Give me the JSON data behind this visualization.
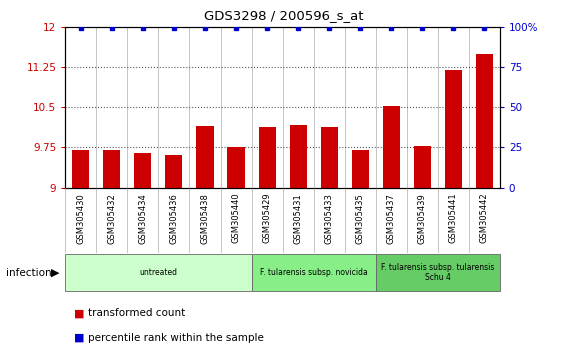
{
  "title": "GDS3298 / 200596_s_at",
  "samples": [
    "GSM305430",
    "GSM305432",
    "GSM305434",
    "GSM305436",
    "GSM305438",
    "GSM305440",
    "GSM305429",
    "GSM305431",
    "GSM305433",
    "GSM305435",
    "GSM305437",
    "GSM305439",
    "GSM305441",
    "GSM305442"
  ],
  "transformed_counts": [
    9.7,
    9.7,
    9.65,
    9.6,
    10.15,
    9.75,
    10.13,
    10.17,
    10.13,
    9.7,
    10.52,
    9.78,
    11.2,
    11.48
  ],
  "percentile_ranks": [
    99,
    99,
    99,
    99,
    99,
    99,
    99,
    99,
    99,
    99,
    99,
    99,
    99,
    99
  ],
  "bar_color": "#cc0000",
  "dot_color": "#0000cc",
  "ylim_left": [
    9.0,
    12.0
  ],
  "ylim_right": [
    0,
    100
  ],
  "yticks_left": [
    9.0,
    9.75,
    10.5,
    11.25,
    12.0
  ],
  "yticks_right": [
    0,
    25,
    50,
    75,
    100
  ],
  "ytick_labels_left": [
    "9",
    "9.75",
    "10.5",
    "11.25",
    "12"
  ],
  "ytick_labels_right": [
    "0",
    "25",
    "50",
    "75",
    "100%"
  ],
  "dotted_lines": [
    9.75,
    10.5,
    11.25
  ],
  "groups": [
    {
      "label": "untreated",
      "start": 0,
      "end": 6,
      "color": "#ccffcc"
    },
    {
      "label": "F. tularensis subsp. novicida",
      "start": 6,
      "end": 10,
      "color": "#88ee88"
    },
    {
      "label": "F. tularensis subsp. tularensis\nSchu 4",
      "start": 10,
      "end": 14,
      "color": "#66cc66"
    }
  ],
  "infection_label": "infection",
  "legend_bar_label": "transformed count",
  "legend_dot_label": "percentile rank within the sample",
  "bar_width": 0.55,
  "label_bg_color": "#cccccc",
  "plot_bg": "#ffffff"
}
